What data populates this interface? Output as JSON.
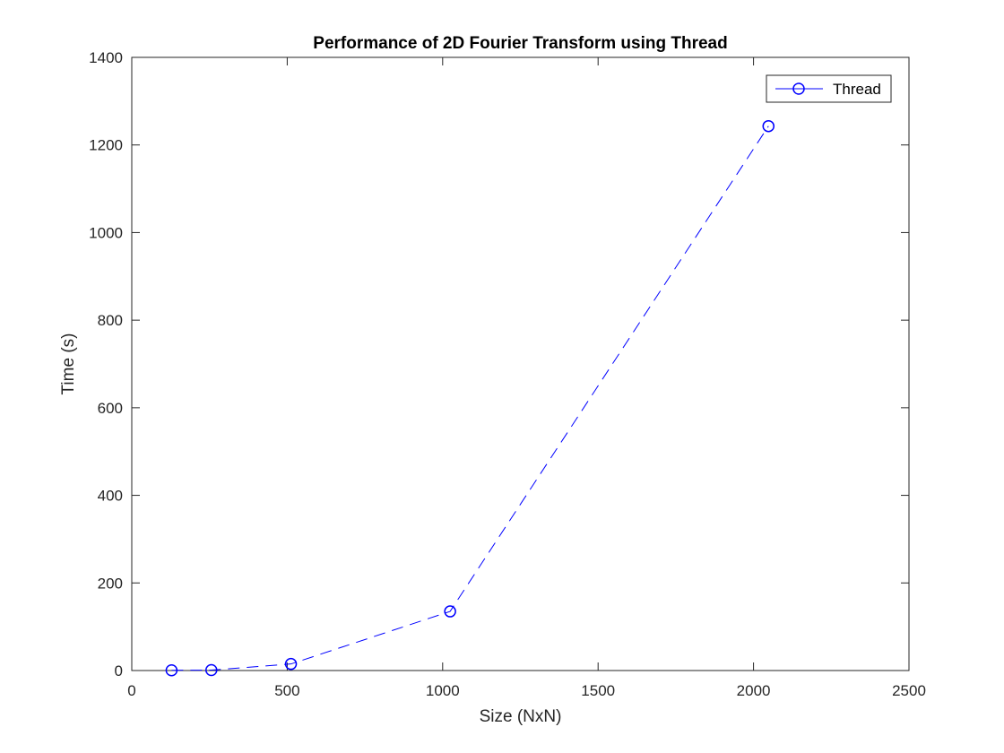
{
  "chart_data": {
    "type": "line",
    "title": "Performance of 2D Fourier Transform using Thread",
    "xlabel": "Size (NxN)",
    "ylabel": "Time (s)",
    "xlim": [
      0,
      2500
    ],
    "ylim": [
      0,
      1400
    ],
    "xticks": [
      0,
      500,
      1000,
      1500,
      2000,
      2500
    ],
    "yticks": [
      0,
      200,
      400,
      600,
      800,
      1000,
      1200,
      1400
    ],
    "grid": false,
    "legend": "top-right",
    "series": [
      {
        "name": "Thread",
        "color": "#0000ff",
        "line_style": "dashed",
        "marker": "circle",
        "x": [
          128,
          256,
          512,
          1024,
          2048
        ],
        "y": [
          0.5,
          1,
          15,
          135,
          1243
        ]
      }
    ]
  }
}
